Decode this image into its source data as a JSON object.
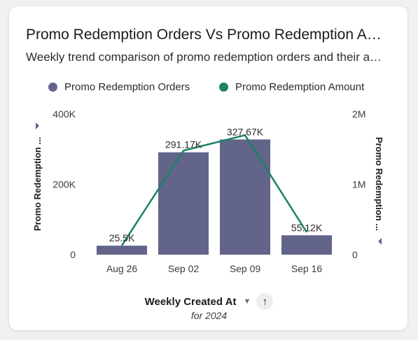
{
  "card": {
    "title": "Promo Redemption Orders Vs Promo Redemption Amount",
    "subtitle": "Weekly trend comparison of promo redemption orders and their amounts"
  },
  "x_axis": {
    "title": "Weekly Created At",
    "subtitle": "for 2024",
    "sort_icon": "arrow-up-icon",
    "dropdown_icon": "caret-down-icon"
  },
  "chart_data": {
    "type": "bar",
    "categories": [
      "Aug 26",
      "Sep 02",
      "Sep 09",
      "Sep 16"
    ],
    "series": [
      {
        "name": "Promo Redemption Orders",
        "type": "bar",
        "axis": "left",
        "color": "#62648a",
        "values": [
          25500,
          291170,
          327670,
          55120
        ],
        "labels": [
          "25.5K",
          "291.17K",
          "327.67K",
          "55.12K"
        ]
      },
      {
        "name": "Promo Redemption Amount",
        "type": "line",
        "axis": "right",
        "color": "#1b8266",
        "values": [
          130000,
          1480000,
          1700000,
          320000
        ]
      }
    ],
    "ylabel": "Promo Redemption ...",
    "y2label": "Promo Redemption ...",
    "ylim": [
      0,
      400000
    ],
    "y2lim": [
      0,
      2000000
    ],
    "yticks": [
      "0",
      "200K",
      "400K"
    ],
    "y2ticks": [
      "0",
      "1M",
      "2M"
    ],
    "legend_position": "top",
    "grid": false
  }
}
